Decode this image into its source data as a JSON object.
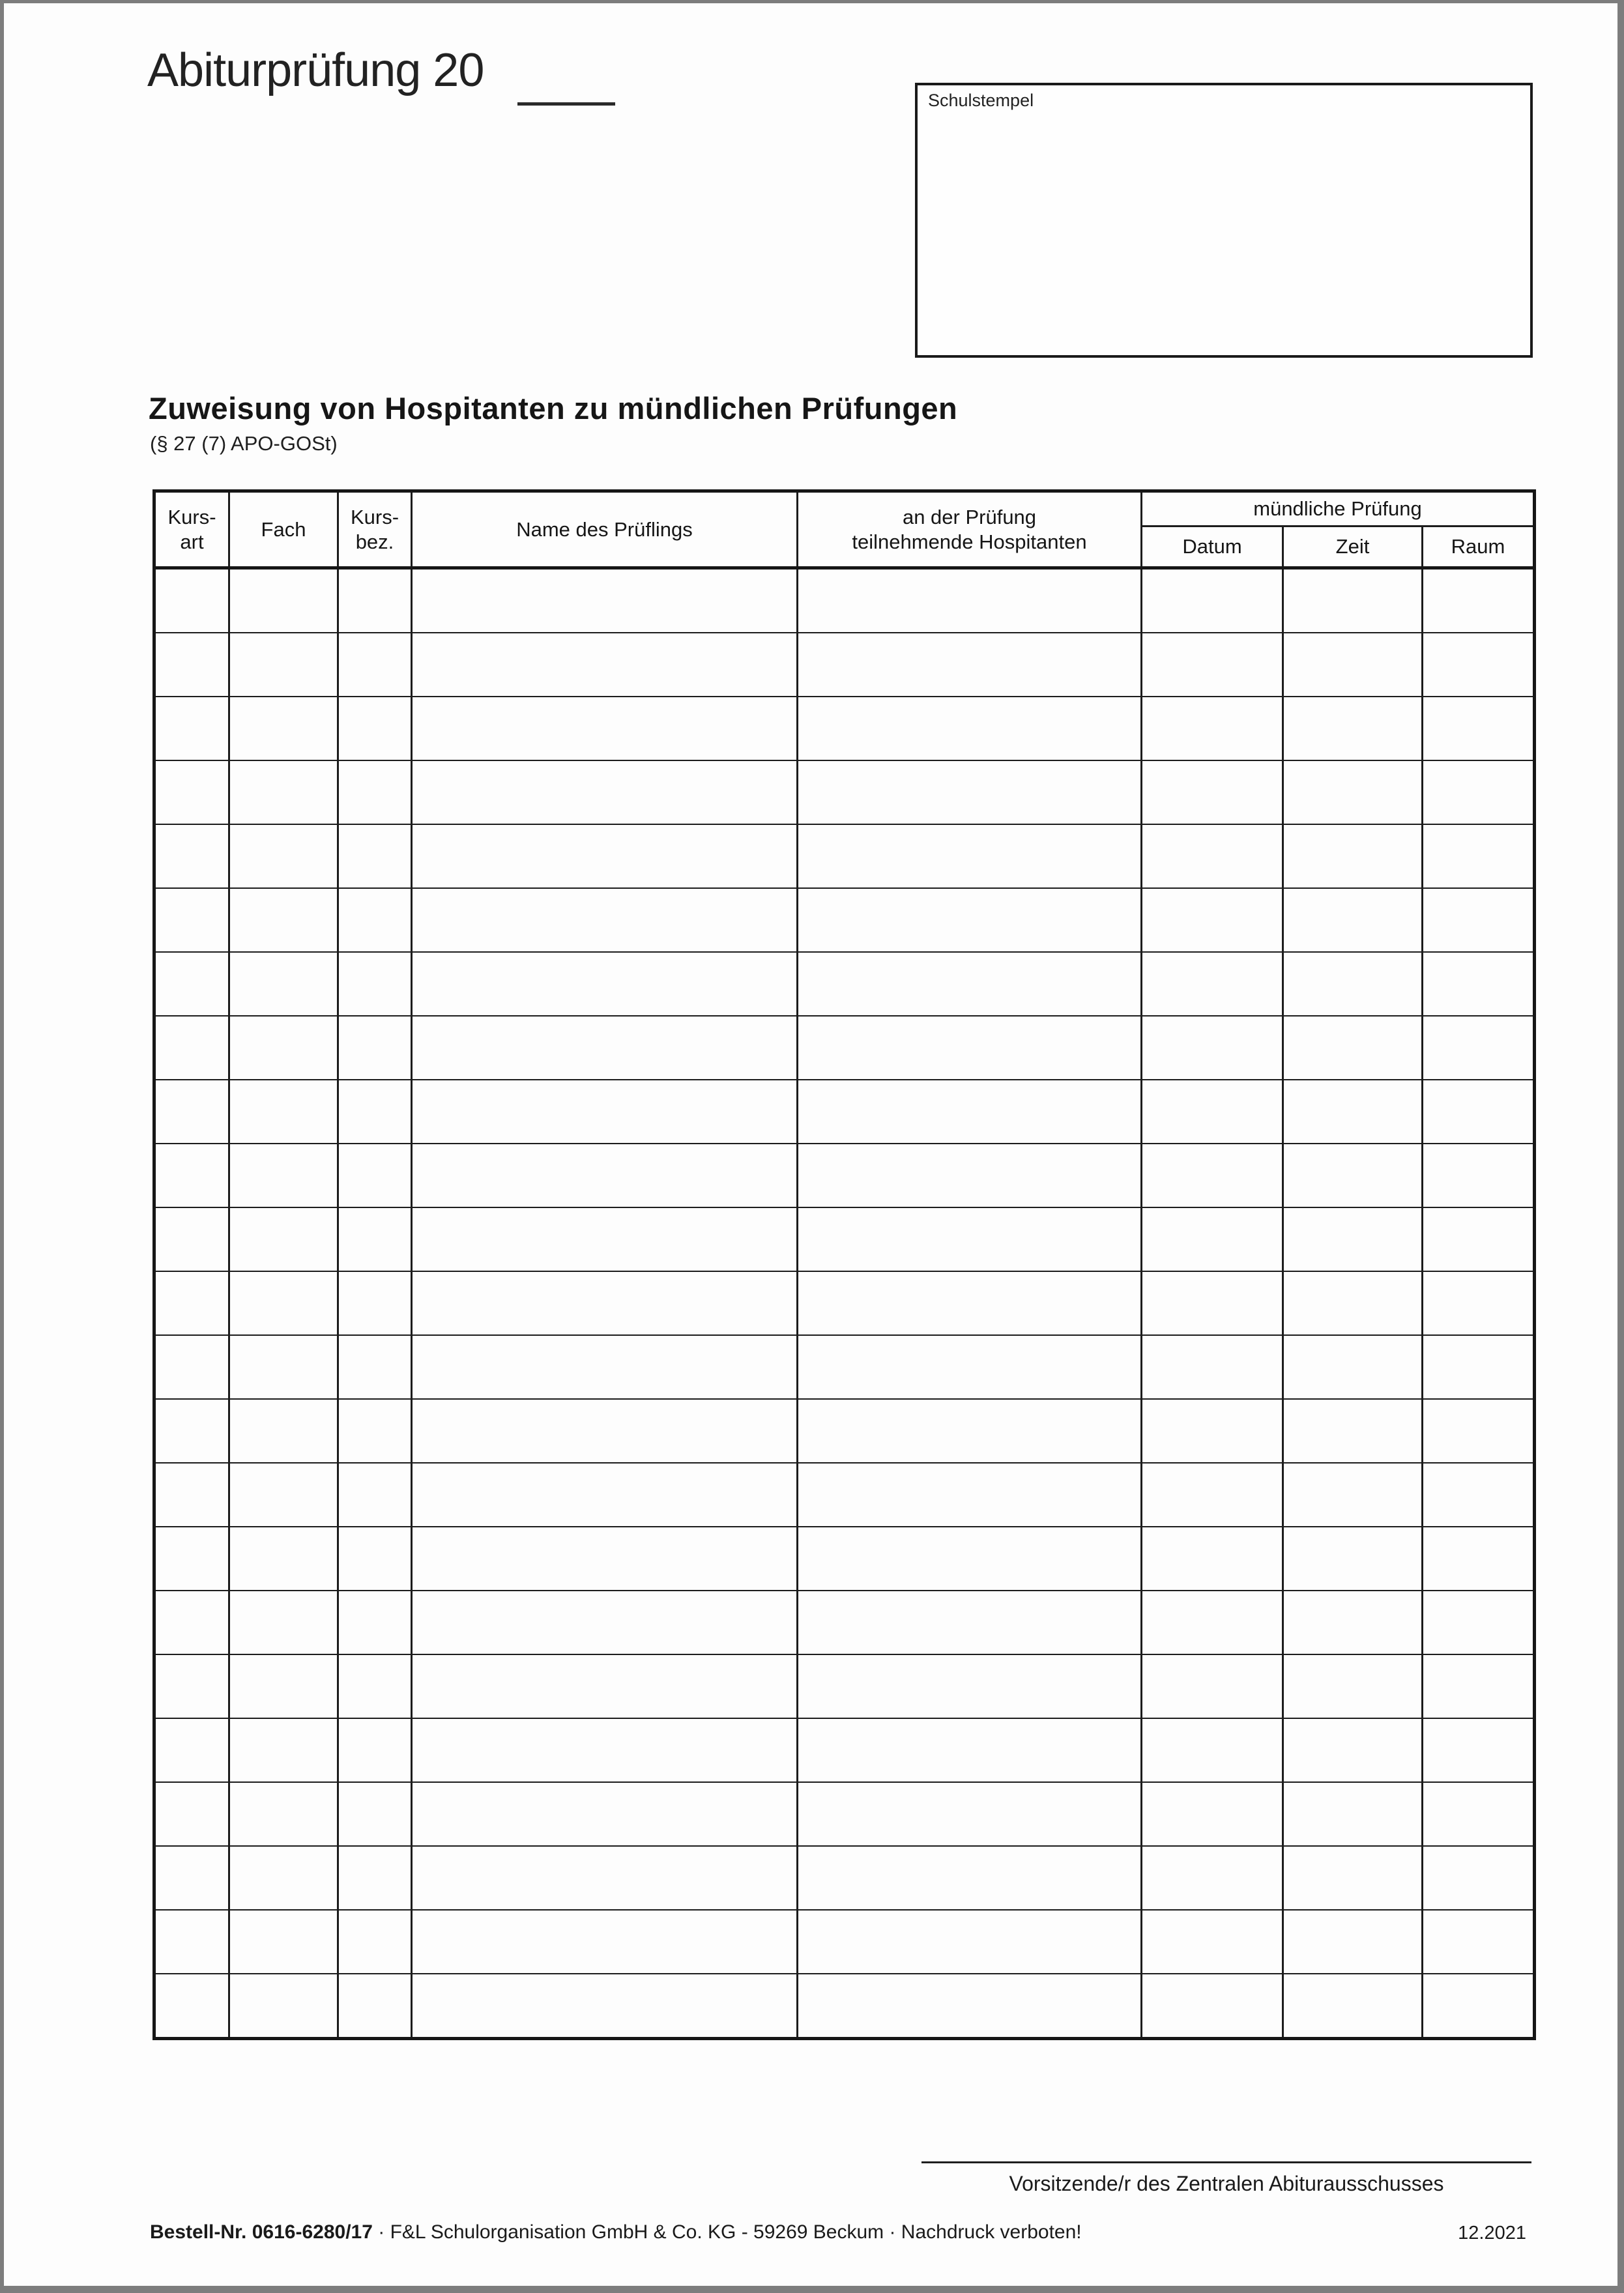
{
  "page": {
    "title": "Abiturprüfung 20",
    "school_stamp_label": "Schulstempel",
    "heading": "Zuweisung von Hospitanten zu mündlichen Prüfungen",
    "subheading": "(§ 27 (7) APO-GOSt)"
  },
  "table": {
    "columns": [
      {
        "label": "Kurs-\nart"
      },
      {
        "label": "Fach"
      },
      {
        "label": "Kurs-\nbez."
      },
      {
        "label": "Name des Prüflings"
      },
      {
        "label": "an der Prüfung\nteilnehmende Hospitanten"
      }
    ],
    "group": {
      "label": "mündliche Prüfung",
      "columns": [
        "Datum",
        "Zeit",
        "Raum"
      ]
    },
    "column_count": 8,
    "row_count": 23,
    "rows_content": "all rows empty (blank form)"
  },
  "signature": {
    "label": "Vorsitzende/r des Zentralen Abiturausschusses"
  },
  "footer": {
    "order_no": "Bestell-Nr. 0616-6280/17",
    "publisher": "· F&L Schulorganisation GmbH & Co. KG - 59269 Beckum · Nachdruck verboten!",
    "date": "12.2021"
  },
  "colors": {
    "ink": "#1c1c1c",
    "paper": "#fdfdfd",
    "scan_edge": "#7d7d7d"
  }
}
